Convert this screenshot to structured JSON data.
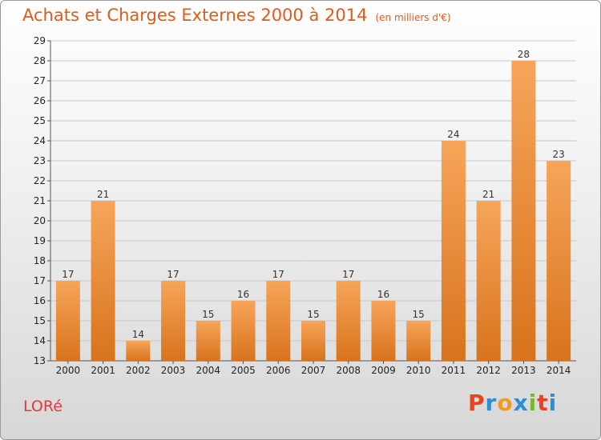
{
  "header": {
    "title": "Achats et Charges Externes 2000 à 2014",
    "subtitle": "(en milliers d'€)"
  },
  "footer": {
    "town": "LORé",
    "brand": "Proxiti",
    "brand_colors": [
      "#e8431c",
      "#2c8fd6",
      "#f39a1e",
      "#2c8fd6",
      "#78b82a",
      "#e8431c",
      "#2c8fd6"
    ]
  },
  "colors": {
    "bar_light": "#f6a55a",
    "bar_dark": "#d8731c",
    "grid": "#c8c8c8",
    "axis": "#555555"
  },
  "chart_data": {
    "type": "bar",
    "categories": [
      "2000",
      "2001",
      "2002",
      "2003",
      "2004",
      "2005",
      "2006",
      "2007",
      "2008",
      "2009",
      "2010",
      "2011",
      "2012",
      "2013",
      "2014"
    ],
    "values": [
      17,
      21,
      14,
      17,
      15,
      16,
      17,
      15,
      17,
      16,
      15,
      24,
      21,
      28,
      23
    ],
    "ylim": [
      13,
      29
    ],
    "yticks": [
      13,
      14,
      15,
      16,
      17,
      18,
      19,
      20,
      21,
      22,
      23,
      24,
      25,
      26,
      27,
      28,
      29
    ],
    "grid": true,
    "data_labels": true,
    "xlabel": "",
    "ylabel": ""
  }
}
